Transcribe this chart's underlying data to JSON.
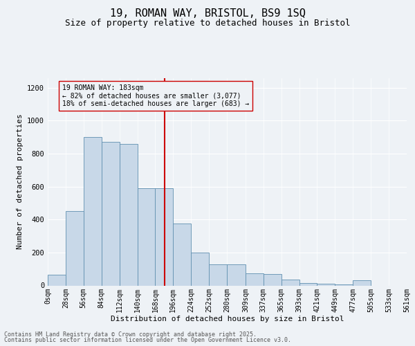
{
  "title": "19, ROMAN WAY, BRISTOL, BS9 1SQ",
  "subtitle": "Size of property relative to detached houses in Bristol",
  "xlabel": "Distribution of detached houses by size in Bristol",
  "ylabel": "Number of detached properties",
  "annotation_line1": "19 ROMAN WAY: 183sqm",
  "annotation_line2": "← 82% of detached houses are smaller (3,077)",
  "annotation_line3": "18% of semi-detached houses are larger (683) →",
  "footer_line1": "Contains HM Land Registry data © Crown copyright and database right 2025.",
  "footer_line2": "Contains public sector information licensed under the Open Government Licence v3.0.",
  "bin_edges": [
    0,
    28,
    56,
    84,
    112,
    140,
    168,
    196,
    224,
    252,
    280,
    309,
    337,
    365,
    393,
    421,
    449,
    477,
    505,
    533,
    561
  ],
  "bar_heights": [
    65,
    450,
    900,
    870,
    860,
    590,
    590,
    375,
    200,
    130,
    130,
    75,
    70,
    35,
    15,
    10,
    5,
    30,
    0,
    0
  ],
  "bar_color": "#c8d8e8",
  "bar_edge_color": "#6090b0",
  "vline_color": "#cc0000",
  "vline_x": 183,
  "ylim": [
    0,
    1260
  ],
  "yticks": [
    0,
    200,
    400,
    600,
    800,
    1000,
    1200
  ],
  "background_color": "#eef2f6",
  "grid_color": "#ffffff",
  "title_fontsize": 11,
  "subtitle_fontsize": 9,
  "annotation_fontsize": 7,
  "ylabel_fontsize": 8,
  "xlabel_fontsize": 8,
  "tick_fontsize": 7,
  "footer_fontsize": 6
}
